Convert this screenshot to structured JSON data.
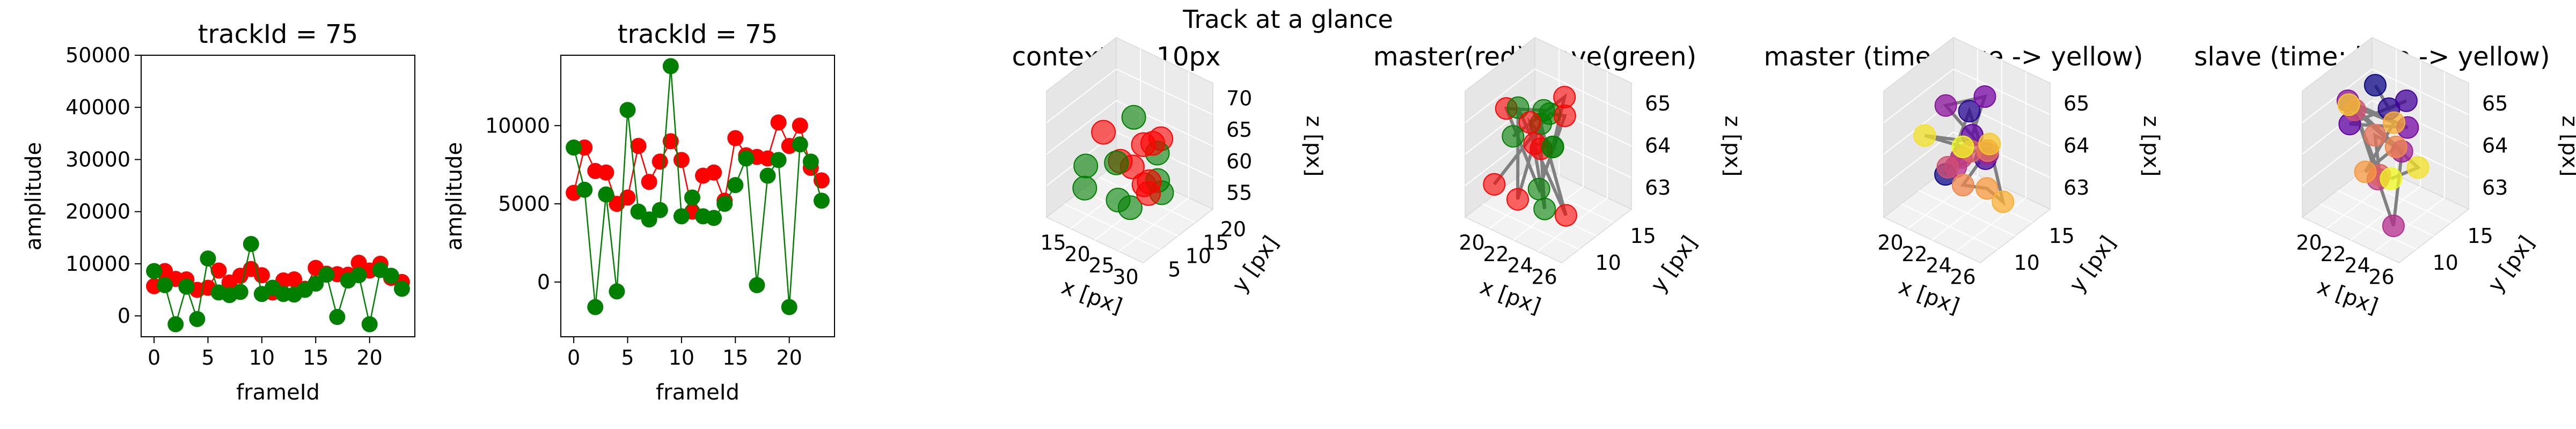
{
  "suptitle": "Track at a glance",
  "chart_data": [
    {
      "type": "line",
      "title": "trackId = 75",
      "xlabel": "frameId",
      "ylabel": "amplitude",
      "ylim": [
        -4000,
        50000
      ],
      "xlim": [
        -1.2,
        24.2
      ],
      "xticks": [
        0,
        5,
        10,
        15,
        20
      ],
      "yticks": [
        0,
        10000,
        20000,
        30000,
        40000,
        50000
      ],
      "series": [
        {
          "color": "#ff0000",
          "x": [
            0,
            1,
            2,
            3,
            4,
            5,
            6,
            7,
            8,
            9,
            10,
            11,
            12,
            13,
            14,
            15,
            16,
            17,
            18,
            19,
            20,
            21,
            22,
            23
          ],
          "values": [
            5700,
            8600,
            7100,
            7000,
            5000,
            5400,
            8700,
            6400,
            7700,
            9000,
            7800,
            4500,
            6800,
            7000,
            5200,
            9200,
            8100,
            8000,
            7900,
            10200,
            8700,
            10000,
            7300,
            6500
          ]
        },
        {
          "color": "#007f00",
          "x": [
            0,
            1,
            2,
            3,
            4,
            5,
            6,
            7,
            8,
            9,
            10,
            11,
            12,
            13,
            14,
            15,
            16,
            17,
            18,
            19,
            20,
            21,
            22,
            23
          ],
          "values": [
            8600,
            5900,
            -1600,
            5600,
            -600,
            11000,
            4500,
            4000,
            4600,
            13800,
            4200,
            5400,
            4200,
            4100,
            5000,
            6200,
            7900,
            -200,
            6800,
            7800,
            -1600,
            8800,
            7700,
            5200
          ]
        }
      ]
    },
    {
      "type": "line",
      "title": "trackId = 75",
      "xlabel": "frameId",
      "ylabel": "amplitude",
      "ylim": [
        -3500,
        14500
      ],
      "xlim": [
        -1.2,
        24.2
      ],
      "xticks": [
        0,
        5,
        10,
        15,
        20
      ],
      "yticks": [
        0,
        5000,
        10000
      ],
      "series": [
        {
          "color": "#ff0000",
          "x": [
            0,
            1,
            2,
            3,
            4,
            5,
            6,
            7,
            8,
            9,
            10,
            11,
            12,
            13,
            14,
            15,
            16,
            17,
            18,
            19,
            20,
            21,
            22,
            23
          ],
          "values": [
            5700,
            8600,
            7100,
            7000,
            5000,
            5400,
            8700,
            6400,
            7700,
            9000,
            7800,
            4500,
            6800,
            7000,
            5200,
            9200,
            8100,
            8000,
            7900,
            10200,
            8700,
            10000,
            7300,
            6500
          ]
        },
        {
          "color": "#007f00",
          "x": [
            0,
            1,
            2,
            3,
            4,
            5,
            6,
            7,
            8,
            9,
            10,
            11,
            12,
            13,
            14,
            15,
            16,
            17,
            18,
            19,
            20,
            21,
            22,
            23
          ],
          "values": [
            8600,
            5900,
            -1600,
            5600,
            -600,
            11000,
            4500,
            4000,
            4600,
            13800,
            4200,
            5400,
            4200,
            4100,
            5000,
            6200,
            7900,
            -200,
            6800,
            7800,
            -1600,
            8800,
            7700,
            5200
          ]
        }
      ]
    },
    {
      "type": "scatter",
      "subtype": "3d",
      "title": "context +- 10px",
      "xlabel": "x [px]",
      "ylabel": "y [px]",
      "zlabel": "z [px]",
      "xticks": [
        "15",
        "20",
        "25",
        "30"
      ],
      "yticks": [
        "5",
        "10",
        "15",
        "20"
      ],
      "zticks": [
        "55",
        "60",
        "65",
        "70"
      ],
      "markers": [
        "#ff0000",
        "#007f00"
      ]
    },
    {
      "type": "scatter",
      "subtype": "3d",
      "title": "master(red) slave(green)",
      "xlabel": "x [px]",
      "ylabel": "y [px]",
      "zlabel": "z [px]",
      "xticks": [
        "20",
        "22",
        "24",
        "26"
      ],
      "yticks": [
        "10",
        "15"
      ],
      "zticks": [
        "63",
        "64",
        "65"
      ],
      "markers": [
        "#ff0000",
        "#007f00"
      ],
      "line_color": "#808080"
    },
    {
      "type": "scatter",
      "subtype": "3d",
      "title": "master (time: blue -> yellow)",
      "xlabel": "x [px]",
      "ylabel": "y [px]",
      "zlabel": "z [px]",
      "xticks": [
        "20",
        "22",
        "24",
        "26"
      ],
      "yticks": [
        "10",
        "15"
      ],
      "zticks": [
        "63",
        "64",
        "65"
      ],
      "colormap": "plasma",
      "line_color": "#808080"
    },
    {
      "type": "scatter",
      "subtype": "3d",
      "title": "slave (time: blue -> yellow)",
      "xlabel": "x [px]",
      "ylabel": "y [px]",
      "zlabel": "z [px]",
      "xticks": [
        "20",
        "22",
        "24",
        "26"
      ],
      "yticks": [
        "10",
        "15"
      ],
      "zticks": [
        "63",
        "64",
        "65"
      ],
      "colormap": "plasma",
      "line_color": "#808080"
    }
  ]
}
